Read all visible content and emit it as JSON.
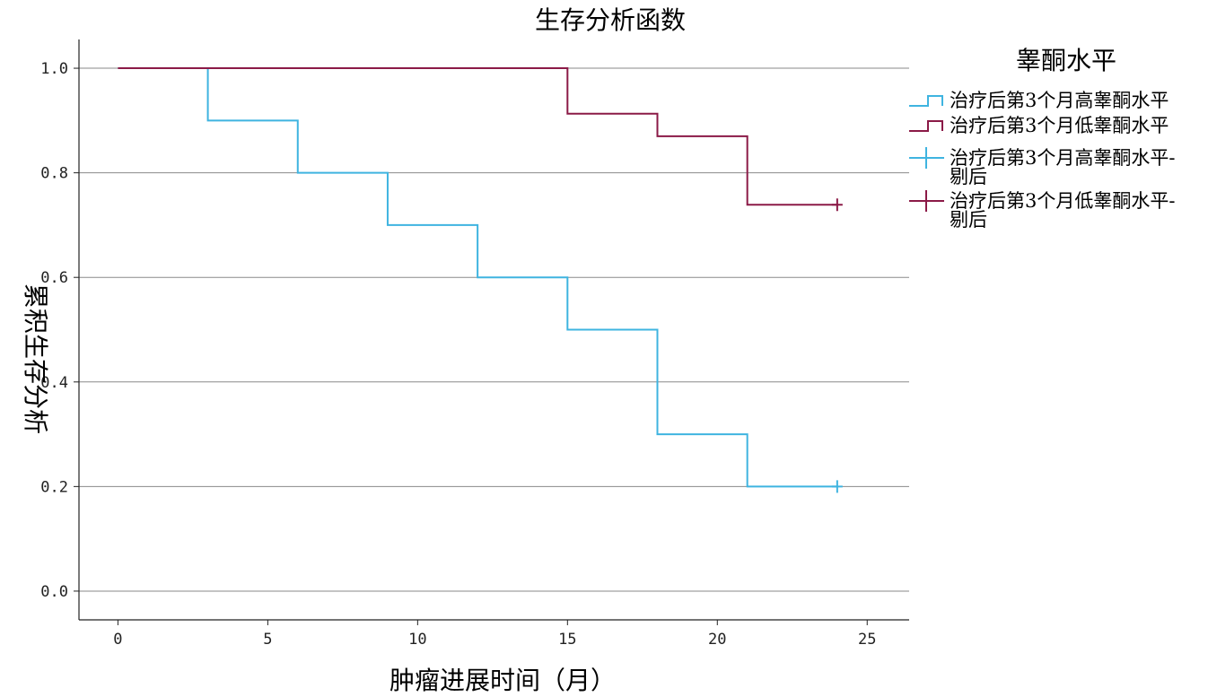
{
  "chart_data": {
    "type": "line",
    "step": true,
    "title": "生存分析函数",
    "xlabel": "肿瘤进展时间（月）",
    "ylabel": "累积生存分析",
    "xlim": [
      -1.3,
      26.4
    ],
    "ylim": [
      -0.055,
      1.055
    ],
    "xticks": [
      0,
      5,
      10,
      15,
      20,
      25
    ],
    "yticks": [
      0.0,
      0.2,
      0.4,
      0.6,
      0.8,
      1.0
    ],
    "ytick_labels": [
      "0.0",
      "0.2",
      "0.4",
      "0.6",
      "0.8",
      "1.0"
    ],
    "grid": "horizontal",
    "legend_title": "睾酮水平",
    "legend_position": "right",
    "series": [
      {
        "name": "治疗后第3个月高睾酮水平",
        "color": "#3fb4e0",
        "x": [
          0,
          3,
          6,
          9,
          12,
          15,
          18,
          21,
          24
        ],
        "y": [
          1.0,
          0.9,
          0.8,
          0.7,
          0.6,
          0.5,
          0.3,
          0.2,
          0.2
        ]
      },
      {
        "name": "治疗后第3个月低睾酮水平",
        "color": "#8b1a47",
        "x": [
          0,
          15,
          18,
          21,
          24
        ],
        "y": [
          1.0,
          0.913,
          0.87,
          0.739,
          0.739
        ]
      }
    ],
    "censored": [
      {
        "name": "治疗后第3个月高睾酮水平-剔后",
        "color": "#3fb4e0",
        "x": [
          24
        ],
        "y": [
          0.2
        ]
      },
      {
        "name": "治疗后第3个月低睾酮水平-剔后",
        "color": "#8b1a47",
        "x": [
          24
        ],
        "y": [
          0.739
        ]
      }
    ],
    "legend_entries": [
      {
        "kind": "step",
        "color": "#3fb4e0",
        "lines": [
          "治疗后第3个月高睾酮水平"
        ]
      },
      {
        "kind": "step",
        "color": "#8b1a47",
        "lines": [
          "治疗后第3个月低睾酮水平"
        ]
      },
      {
        "kind": "censor",
        "color": "#3fb4e0",
        "lines": [
          "治疗后第3个月高睾酮水平-",
          "剔后"
        ]
      },
      {
        "kind": "censor",
        "color": "#8b1a47",
        "lines": [
          "治疗后第3个月低睾酮水平-",
          "剔后"
        ]
      }
    ]
  }
}
